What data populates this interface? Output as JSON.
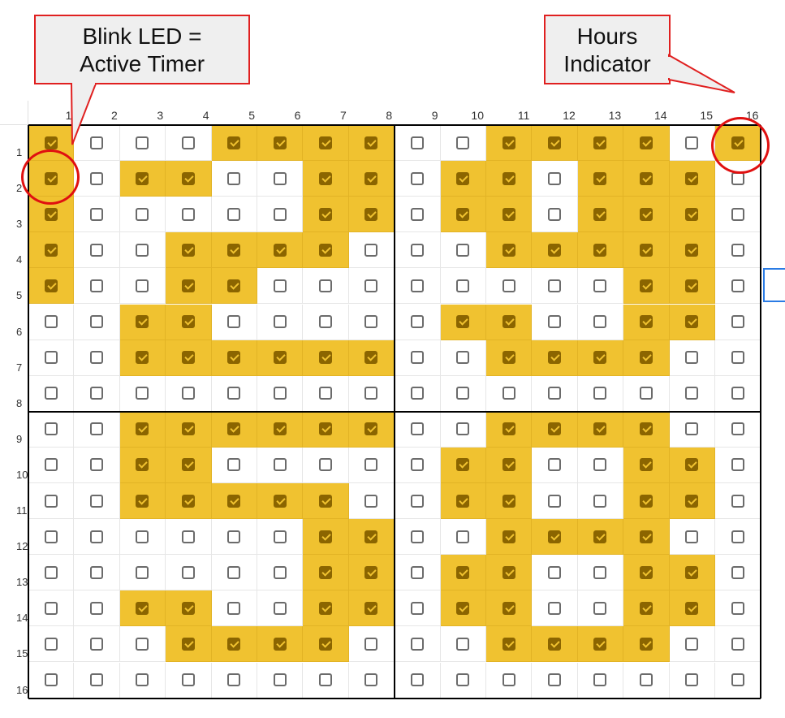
{
  "columns": [
    "1",
    "2",
    "3",
    "4",
    "5",
    "6",
    "7",
    "8",
    "9",
    "10",
    "11",
    "12",
    "13",
    "14",
    "15",
    "16"
  ],
  "rows": [
    "1",
    "2",
    "3",
    "4",
    "5",
    "6",
    "7",
    "8",
    "9",
    "10",
    "11",
    "12",
    "13",
    "14",
    "15",
    "16"
  ],
  "grid": [
    "1000111100111101",
    "1011001101101110",
    "1000001101101110",
    "1001111000111110",
    "1001100000000110",
    "0011000001100110",
    "0011111100111100",
    "0000000000000000",
    "0011111100111100",
    "0011000001100110",
    "0011111001100110",
    "0000001100111100",
    "0000001101100110",
    "0011001101100110",
    "0001111000111100",
    "0000000000000000"
  ],
  "callouts": {
    "blink": {
      "line1": "Blink LED =",
      "line2": "Active Timer"
    },
    "hours": {
      "line1": "Hours",
      "line2": "Indicator"
    }
  },
  "colors": {
    "on_fill": "#f0c230",
    "accent": "#e01010",
    "divider": "#000000"
  }
}
